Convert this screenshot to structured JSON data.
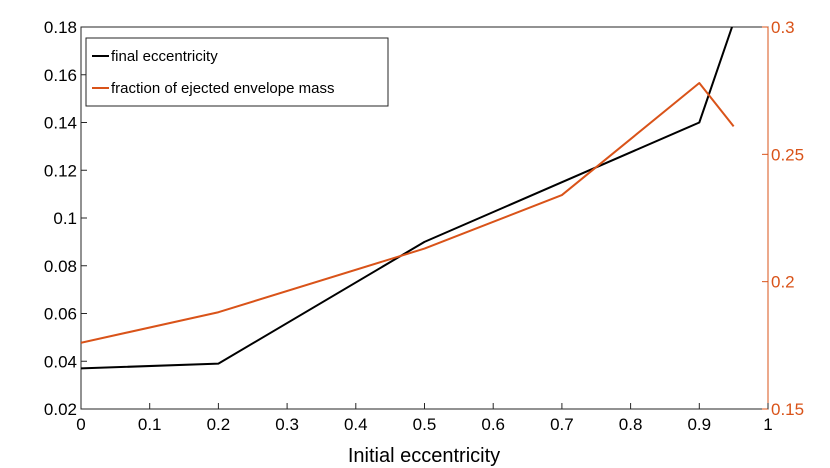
{
  "chart_data": {
    "type": "line",
    "title": "",
    "xlabel": "Initial eccentricity",
    "ylabel": "",
    "xlim": [
      0,
      1
    ],
    "ylim": [
      0.02,
      0.18
    ],
    "y2lim": [
      0.15,
      0.3
    ],
    "x_ticks": [
      "0",
      "0.1",
      "0.2",
      "0.3",
      "0.4",
      "0.5",
      "0.6",
      "0.7",
      "0.8",
      "0.9",
      "1"
    ],
    "y_ticks": [
      "0.02",
      "0.04",
      "0.06",
      "0.08",
      "0.1",
      "0.12",
      "0.14",
      "0.16",
      "0.18"
    ],
    "y2_ticks": [
      "0.15",
      "0.2",
      "0.25",
      "0.3"
    ],
    "legend_position": "top-left",
    "series": [
      {
        "name": "final eccentricity",
        "axis": "left",
        "color": "#000000",
        "x": [
          0,
          0.2,
          0.5,
          0.9,
          0.95
        ],
        "y": [
          0.037,
          0.039,
          0.09,
          0.14,
          0.182
        ]
      },
      {
        "name": "fraction of ejected envelope mass",
        "axis": "right",
        "color": "#d95319",
        "x": [
          0,
          0.2,
          0.5,
          0.7,
          0.9,
          0.95
        ],
        "y": [
          0.176,
          0.188,
          0.213,
          0.234,
          0.278,
          0.261
        ]
      }
    ]
  }
}
